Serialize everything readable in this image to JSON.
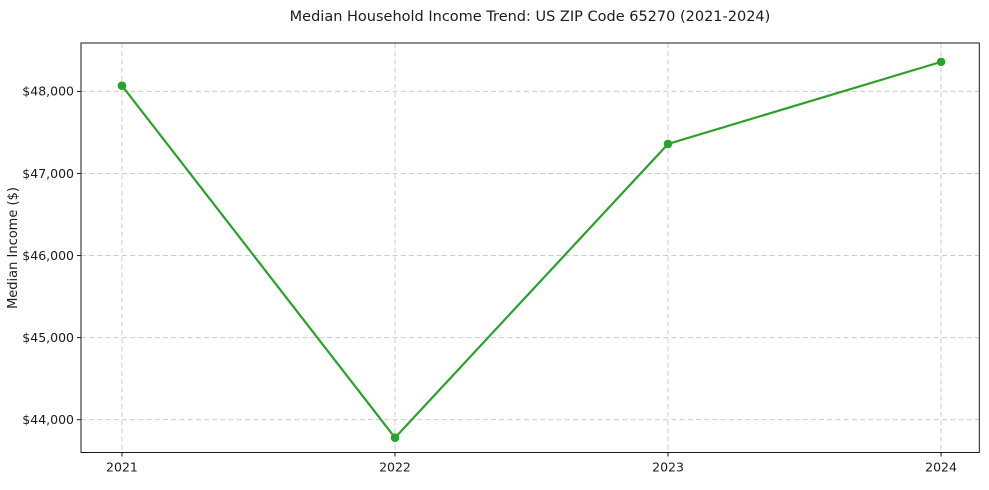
{
  "chart_data": {
    "type": "line",
    "title": "Median Household Income Trend: US ZIP Code 65270 (2021-2024)",
    "xlabel": "",
    "ylabel": "Median Income ($)",
    "x": [
      2021,
      2022,
      2023,
      2024
    ],
    "values": [
      48070,
      43780,
      47360,
      48360
    ],
    "xticks": [
      2021,
      2022,
      2023,
      2024
    ],
    "xtick_labels": [
      "2021",
      "2022",
      "2023",
      "2024"
    ],
    "yticks": [
      44000,
      45000,
      46000,
      47000,
      48000
    ],
    "ytick_labels": [
      "$44,000",
      "$45,000",
      "$46,000",
      "$47,000",
      "$48,000"
    ],
    "xlim": [
      2020.85,
      2024.14
    ],
    "ylim": [
      43600,
      48590
    ],
    "grid": true,
    "grid_style": "dashed",
    "legend_position": "none",
    "line_color": "#2ca02c",
    "marker": "circle",
    "marker_radius": 4.3,
    "line_width": 2.2,
    "grid_color": "#cccccc",
    "spine_color": "#1a1a1a",
    "tick_color": "#1a1a1a",
    "text_color": "#1c1c1c",
    "background_color": "#ffffff"
  }
}
